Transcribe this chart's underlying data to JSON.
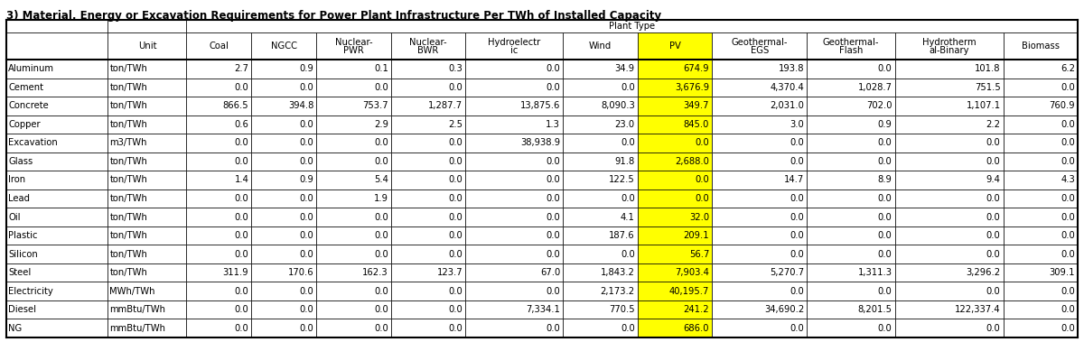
{
  "title": "3) Material, Energy or Excavation Requirements for Power Plant Infrastructure Per TWh of Installed Capacity",
  "col_headers_line1": [
    "",
    "",
    "Coal",
    "NGCC",
    "Nuclear-",
    "Nuclear-",
    "Hydroelectr",
    "Wind",
    "PV",
    "Geothermal-",
    "Geothermal-",
    "Hydrotherm",
    "Biomass"
  ],
  "col_headers_line2": [
    "",
    "Unit",
    "",
    "",
    "PWR",
    "BWR",
    "ic",
    "",
    "",
    "EGS",
    "Flash",
    "al-Binary",
    ""
  ],
  "rows": [
    [
      "Aluminum",
      "ton/TWh",
      "2.7",
      "0.9",
      "0.1",
      "0.3",
      "0.0",
      "34.9",
      "674.9",
      "193.8",
      "0.0",
      "101.8",
      "6.2"
    ],
    [
      "Cement",
      "ton/TWh",
      "0.0",
      "0.0",
      "0.0",
      "0.0",
      "0.0",
      "0.0",
      "3,676.9",
      "4,370.4",
      "1,028.7",
      "751.5",
      "0.0"
    ],
    [
      "Concrete",
      "ton/TWh",
      "866.5",
      "394.8",
      "753.7",
      "1,287.7",
      "13,875.6",
      "8,090.3",
      "349.7",
      "2,031.0",
      "702.0",
      "1,107.1",
      "760.9"
    ],
    [
      "Copper",
      "ton/TWh",
      "0.6",
      "0.0",
      "2.9",
      "2.5",
      "1.3",
      "23.0",
      "845.0",
      "3.0",
      "0.9",
      "2.2",
      "0.0"
    ],
    [
      "Excavation",
      "m3/TWh",
      "0.0",
      "0.0",
      "0.0",
      "0.0",
      "38,938.9",
      "0.0",
      "0.0",
      "0.0",
      "0.0",
      "0.0",
      "0.0"
    ],
    [
      "Glass",
      "ton/TWh",
      "0.0",
      "0.0",
      "0.0",
      "0.0",
      "0.0",
      "91.8",
      "2,688.0",
      "0.0",
      "0.0",
      "0.0",
      "0.0"
    ],
    [
      "Iron",
      "ton/TWh",
      "1.4",
      "0.9",
      "5.4",
      "0.0",
      "0.0",
      "122.5",
      "0.0",
      "14.7",
      "8.9",
      "9.4",
      "4.3"
    ],
    [
      "Lead",
      "ton/TWh",
      "0.0",
      "0.0",
      "1.9",
      "0.0",
      "0.0",
      "0.0",
      "0.0",
      "0.0",
      "0.0",
      "0.0",
      "0.0"
    ],
    [
      "Oil",
      "ton/TWh",
      "0.0",
      "0.0",
      "0.0",
      "0.0",
      "0.0",
      "4.1",
      "32.0",
      "0.0",
      "0.0",
      "0.0",
      "0.0"
    ],
    [
      "Plastic",
      "ton/TWh",
      "0.0",
      "0.0",
      "0.0",
      "0.0",
      "0.0",
      "187.6",
      "209.1",
      "0.0",
      "0.0",
      "0.0",
      "0.0"
    ],
    [
      "Silicon",
      "ton/TWh",
      "0.0",
      "0.0",
      "0.0",
      "0.0",
      "0.0",
      "0.0",
      "56.7",
      "0.0",
      "0.0",
      "0.0",
      "0.0"
    ],
    [
      "Steel",
      "ton/TWh",
      "311.9",
      "170.6",
      "162.3",
      "123.7",
      "67.0",
      "1,843.2",
      "7,903.4",
      "5,270.7",
      "1,311.3",
      "3,296.2",
      "309.1"
    ],
    [
      "Electricity",
      "MWh/TWh",
      "0.0",
      "0.0",
      "0.0",
      "0.0",
      "0.0",
      "2,173.2",
      "40,195.7",
      "0.0",
      "0.0",
      "0.0",
      "0.0"
    ],
    [
      "Diesel",
      "mmBtu/TWh",
      "0.0",
      "0.0",
      "0.0",
      "0.0",
      "7,334.1",
      "770.5",
      "241.2",
      "34,690.2",
      "8,201.5",
      "122,337.4",
      "0.0"
    ],
    [
      "NG",
      "mmBtu/TWh",
      "0.0",
      "0.0",
      "0.0",
      "0.0",
      "0.0",
      "0.0",
      "686.0",
      "0.0",
      "0.0",
      "0.0",
      "0.0"
    ]
  ],
  "pv_col_index": 8,
  "pv_highlight_color": "#FFFF00",
  "title_fontsize": 8.5,
  "cell_fontsize": 7.2,
  "header_fontsize": 7.2,
  "col_widths_rel": [
    7.5,
    5.8,
    4.8,
    4.8,
    5.5,
    5.5,
    7.2,
    5.5,
    5.5,
    7.0,
    6.5,
    8.0,
    5.5
  ]
}
